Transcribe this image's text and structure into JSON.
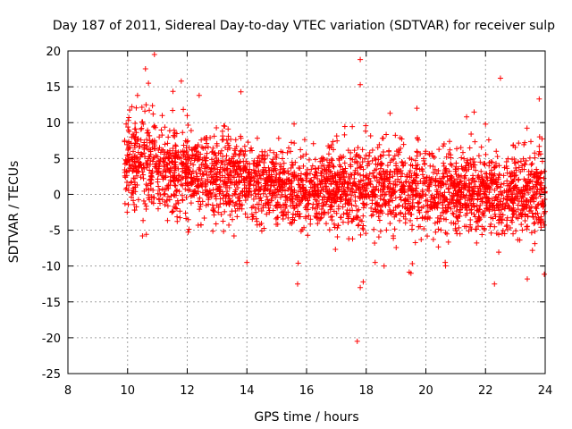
{
  "chart_data": {
    "type": "scatter",
    "title": "Day 187 of 2011, Sidereal Day-to-day VTEC variation (SDTVAR) for receiver sulp",
    "xlabel": "GPS time / hours",
    "ylabel": "SDTVAR / TECUs",
    "xlim": [
      8,
      24
    ],
    "ylim": [
      -25,
      20
    ],
    "xticks": [
      8,
      10,
      12,
      14,
      16,
      18,
      20,
      22,
      24
    ],
    "yticks": [
      -25,
      -20,
      -15,
      -10,
      -5,
      0,
      5,
      10,
      15,
      20
    ],
    "xtick_labels": [
      "8",
      "10",
      "12",
      "14",
      "16",
      "18",
      "20",
      "22",
      "24"
    ],
    "ytick_labels": [
      "-25",
      "-20",
      "-15",
      "-10",
      "-5",
      "0",
      "5",
      "10",
      "15",
      "20"
    ],
    "grid": true,
    "marker": "+",
    "marker_color": "#ff0000",
    "trend": [
      {
        "x": 9.9,
        "mean": 5.0,
        "spread": 3.2
      },
      {
        "x": 11,
        "mean": 3.8,
        "spread": 3.0
      },
      {
        "x": 12,
        "mean": 2.8,
        "spread": 2.8
      },
      {
        "x": 13,
        "mean": 2.2,
        "spread": 2.6
      },
      {
        "x": 14,
        "mean": 1.8,
        "spread": 2.6
      },
      {
        "x": 15,
        "mean": 1.3,
        "spread": 2.6
      },
      {
        "x": 16,
        "mean": 1.0,
        "spread": 2.6
      },
      {
        "x": 17,
        "mean": 0.8,
        "spread": 2.7
      },
      {
        "x": 18,
        "mean": 0.8,
        "spread": 2.8
      },
      {
        "x": 19,
        "mean": 0.8,
        "spread": 2.8
      },
      {
        "x": 20,
        "mean": 0.7,
        "spread": 2.8
      },
      {
        "x": 21,
        "mean": 0.6,
        "spread": 2.7
      },
      {
        "x": 22,
        "mean": 0.2,
        "spread": 2.6
      },
      {
        "x": 23,
        "mean": 0.0,
        "spread": 2.7
      },
      {
        "x": 24,
        "mean": -0.2,
        "spread": 3.0
      }
    ],
    "outliers": [
      {
        "x": 10.6,
        "y": 17.5
      },
      {
        "x": 10.9,
        "y": 19.5
      },
      {
        "x": 10.7,
        "y": 15.5
      },
      {
        "x": 11.8,
        "y": 15.8
      },
      {
        "x": 12.4,
        "y": 13.8
      },
      {
        "x": 13.8,
        "y": 14.3
      },
      {
        "x": 17.8,
        "y": 18.8
      },
      {
        "x": 17.8,
        "y": 15.3
      },
      {
        "x": 22.5,
        "y": 16.2
      },
      {
        "x": 23.8,
        "y": 13.3
      },
      {
        "x": 15.7,
        "y": -12.5
      },
      {
        "x": 17.7,
        "y": -20.5
      },
      {
        "x": 17.8,
        "y": -13.0
      },
      {
        "x": 17.9,
        "y": -12.2
      },
      {
        "x": 18.3,
        "y": -9.5
      },
      {
        "x": 18.6,
        "y": -10.0
      },
      {
        "x": 19.5,
        "y": -11.0
      },
      {
        "x": 22.3,
        "y": -12.5
      },
      {
        "x": 23.4,
        "y": -11.8
      },
      {
        "x": 14.0,
        "y": -9.5
      },
      {
        "x": 10.5,
        "y": -5.8
      },
      {
        "x": 12.0,
        "y": 11.0
      },
      {
        "x": 18.8,
        "y": 11.3
      },
      {
        "x": 19.7,
        "y": 12.0
      },
      {
        "x": 22.0,
        "y": 9.8
      }
    ],
    "scatter_points_per_hour": 220
  }
}
